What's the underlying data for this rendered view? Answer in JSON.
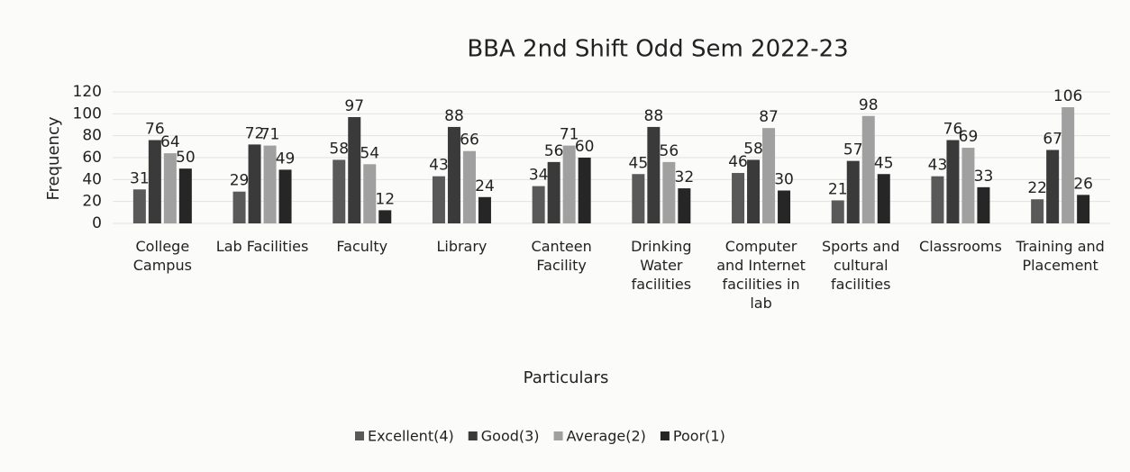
{
  "chart_data": {
    "type": "bar",
    "title": "BBA 2nd Shift Odd Sem 2022-23",
    "x_label": "Particulars",
    "y_label": "Frequency",
    "categories": [
      "College Campus",
      "Lab Facilities",
      "Faculty",
      "Library",
      "Canteen Facility",
      "Drinking Water facilities",
      "Computer and Internet facilities in lab",
      "Sports and cultural facilities",
      "Classrooms",
      "Training and Placement"
    ],
    "series": [
      {
        "name": "Excellent(4)",
        "color": "#595959",
        "values": [
          31,
          29,
          58,
          43,
          34,
          45,
          46,
          21,
          43,
          22
        ]
      },
      {
        "name": "Good(3)",
        "color": "#3a3a3a",
        "values": [
          76,
          72,
          97,
          88,
          56,
          88,
          58,
          57,
          76,
          67
        ]
      },
      {
        "name": "Average(2)",
        "color": "#a0a0a0",
        "values": [
          64,
          71,
          54,
          66,
          71,
          56,
          87,
          98,
          69,
          106
        ]
      },
      {
        "name": "Poor(1)",
        "color": "#262626",
        "values": [
          50,
          49,
          12,
          24,
          60,
          32,
          30,
          45,
          33,
          26
        ]
      }
    ],
    "ylim": [
      0,
      120
    ],
    "yticks": [
      0,
      20,
      40,
      60,
      80,
      100,
      120
    ],
    "grid": true,
    "legend": "bottom"
  }
}
